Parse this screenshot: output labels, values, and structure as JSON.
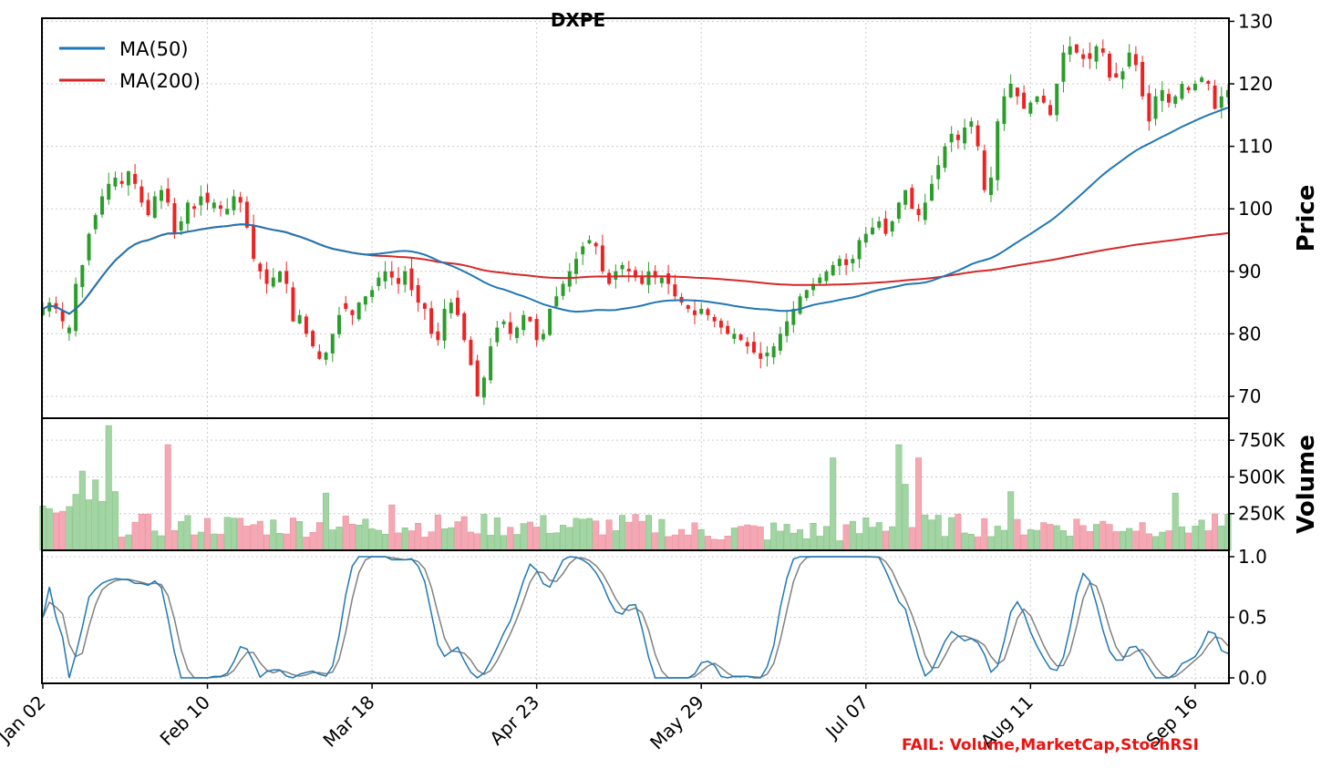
{
  "chart_data": {
    "type": "candlestick",
    "title": "DXPE",
    "legend": {
      "placement": "top-left",
      "entries": [
        {
          "name": "MA(50)",
          "color": "#1f77b4"
        },
        {
          "name": "MA(200)",
          "color": "#d62728"
        }
      ]
    },
    "x_tick_labels": [
      "Jan 02",
      "Feb 10",
      "Mar 18",
      "Apr 23",
      "May 29",
      "Jul 07",
      "Aug 11",
      "Sep 16"
    ],
    "x_tick_indices": [
      0,
      25,
      50,
      75,
      100,
      125,
      150,
      175
    ],
    "price_panel": {
      "ylabel": "Price",
      "ylim": [
        66.5,
        130.5
      ],
      "yticks": [
        70,
        80,
        90,
        100,
        110,
        120,
        130
      ],
      "close": [
        84,
        85,
        84,
        82,
        81,
        88,
        91,
        96,
        99,
        102,
        104,
        105,
        104,
        106,
        104,
        101,
        99,
        102,
        103,
        101,
        96,
        98,
        101,
        100,
        102,
        101,
        101,
        100,
        100,
        102,
        101,
        97,
        92,
        90,
        88,
        89,
        90,
        88,
        82,
        83,
        80,
        78,
        76,
        77,
        80,
        83,
        84,
        83,
        85,
        86,
        87,
        89,
        90,
        89,
        88,
        90,
        87,
        85,
        84,
        80,
        79,
        84,
        85,
        83,
        79,
        75,
        70,
        73,
        78,
        81,
        82,
        80,
        81,
        83,
        82,
        79,
        80,
        84,
        86,
        88,
        90,
        92,
        94,
        95,
        94,
        90,
        88,
        90,
        91,
        90,
        89,
        88,
        90,
        89,
        89,
        88,
        86,
        85,
        84,
        83,
        84,
        83,
        82,
        81,
        80,
        80,
        79,
        78,
        77,
        76,
        77,
        78,
        80,
        82,
        84,
        86,
        87,
        88,
        89,
        90,
        91,
        92,
        91,
        92,
        95,
        96,
        97,
        98,
        96,
        98,
        101,
        103,
        100,
        99,
        101,
        104,
        107,
        110,
        112,
        111,
        113,
        114,
        110,
        103,
        105,
        114,
        118,
        120,
        118,
        116,
        117,
        118,
        117,
        115,
        120,
        125,
        126,
        125,
        124,
        124,
        126,
        125,
        121,
        121,
        122,
        125,
        123,
        118,
        114,
        118,
        119,
        117,
        118,
        120,
        119,
        120,
        121,
        120,
        116,
        118,
        119
      ]
    },
    "volume_panel": {
      "ylabel": "Volume",
      "yticks": [
        250000,
        500000,
        750000
      ],
      "ytick_labels": [
        "250K",
        "500K",
        "750K"
      ]
    },
    "stoch_rsi_panel": {
      "yticks": [
        0.0,
        0.5,
        1.0
      ],
      "ytick_labels": [
        "0.0",
        "0.5",
        "1.0"
      ],
      "k_color": "#1f77b4",
      "d_color": "#808080"
    }
  },
  "footer": {
    "fail_text": "FAIL: Volume,MarketCap,StochRSI"
  }
}
